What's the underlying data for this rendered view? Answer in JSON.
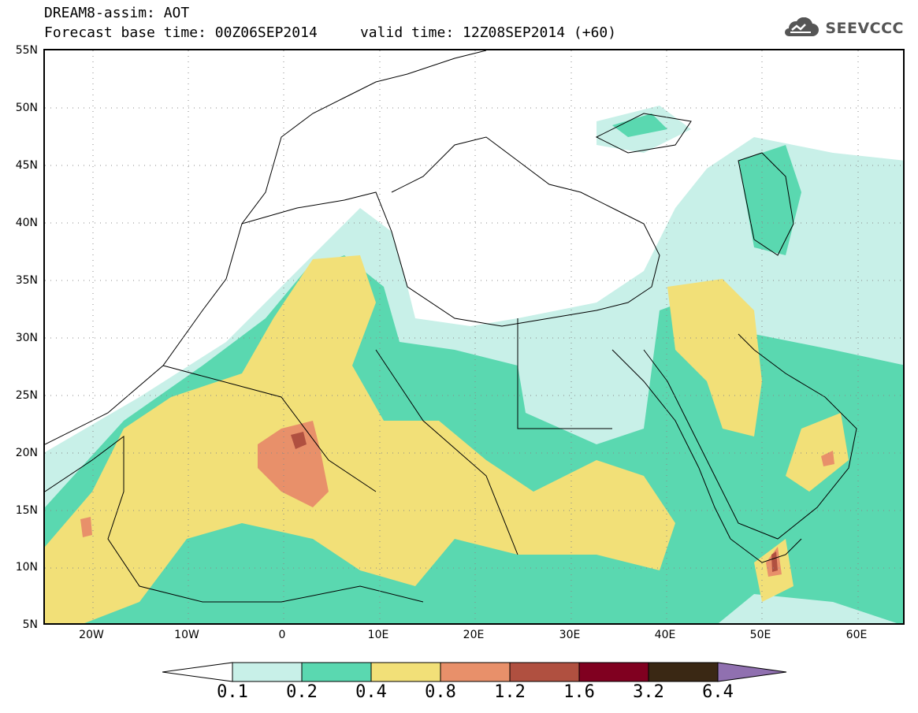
{
  "header": {
    "title_line1": "DREAM8-assim: AOT",
    "title_line2": "Forecast base time: 00Z06SEP2014     valid time: 12Z08SEP2014 (+60)"
  },
  "logo": {
    "text": "SEEVCCC",
    "icon": "cloud-icon",
    "color": "#555555"
  },
  "map": {
    "lat_labels": [
      "55N",
      "50N",
      "45N",
      "40N",
      "35N",
      "30N",
      "25N",
      "20N",
      "15N",
      "10N",
      "5N"
    ],
    "lon_labels": [
      "20W",
      "10W",
      "0",
      "10E",
      "20E",
      "30E",
      "40E",
      "50E",
      "60E"
    ],
    "extent": {
      "lon_min": -25,
      "lon_max": 65,
      "lat_min": 5,
      "lat_max": 55
    }
  },
  "legend": {
    "levels": [
      "0.1",
      "0.2",
      "0.4",
      "0.8",
      "1.2",
      "1.6",
      "3.2",
      "6.4"
    ],
    "colors": [
      "#ffffff",
      "#c8f0e8",
      "#5ad8b0",
      "#f2e078",
      "#e8906a",
      "#b05040",
      "#800020",
      "#3a2814",
      "#9070b0"
    ]
  }
}
